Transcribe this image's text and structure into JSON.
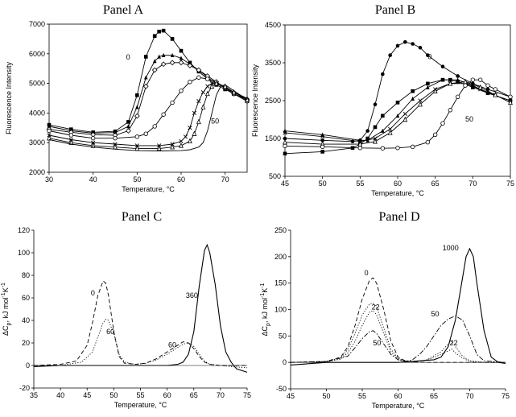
{
  "chart_data": [
    {
      "panel": "A",
      "type": "scatter",
      "title": "Panel A",
      "xlabel": "Temperature, °C",
      "ylabel": "Fluorescence Intensity",
      "xlim": [
        30,
        75
      ],
      "ylim": [
        2000,
        7000
      ],
      "xticks": [
        30,
        40,
        50,
        60,
        70
      ],
      "yticks": [
        2000,
        3000,
        4000,
        5000,
        6000,
        7000
      ],
      "frame": "box",
      "grid": false,
      "series": [
        {
          "marker": "filled-square",
          "line": "solid",
          "x": [
            30,
            35,
            40,
            45,
            48,
            50,
            52,
            54,
            55,
            56,
            58,
            60,
            62,
            64,
            66,
            68,
            70,
            72,
            75
          ],
          "y": [
            3600,
            3450,
            3350,
            3380,
            3700,
            4600,
            5900,
            6600,
            6750,
            6780,
            6500,
            6100,
            5700,
            5400,
            5150,
            4950,
            4800,
            4650,
            4450
          ]
        },
        {
          "marker": "filled-triangle",
          "line": "solid",
          "x": [
            30,
            35,
            40,
            45,
            48,
            50,
            52,
            54,
            55,
            56,
            58,
            60,
            62,
            64,
            66,
            68,
            70,
            72,
            75
          ],
          "y": [
            3550,
            3400,
            3320,
            3340,
            3550,
            4200,
            5200,
            5750,
            5900,
            5950,
            5950,
            5850,
            5650,
            5450,
            5200,
            5000,
            4850,
            4700,
            4500
          ]
        },
        {
          "marker": "open-diamond",
          "line": "solid",
          "x": [
            30,
            35,
            40,
            45,
            48,
            50,
            52,
            54,
            56,
            58,
            60,
            62,
            64,
            66,
            68,
            70,
            72,
            75
          ],
          "y": [
            3450,
            3350,
            3270,
            3250,
            3400,
            3900,
            4900,
            5450,
            5650,
            5700,
            5700,
            5600,
            5450,
            5250,
            5050,
            4850,
            4650,
            4450
          ]
        },
        {
          "marker": "open-circle",
          "line": "solid",
          "x": [
            30,
            35,
            40,
            45,
            50,
            52,
            54,
            56,
            58,
            60,
            62,
            64,
            66,
            68,
            70,
            72,
            75
          ],
          "y": [
            3400,
            3250,
            3150,
            3150,
            3200,
            3300,
            3550,
            3950,
            4350,
            4750,
            5050,
            5200,
            5150,
            5050,
            4850,
            4650,
            4400
          ]
        },
        {
          "marker": "cross",
          "line": "solid",
          "x": [
            30,
            35,
            40,
            45,
            50,
            55,
            58,
            60,
            61,
            62,
            63,
            64,
            65,
            66,
            67,
            68,
            70,
            72,
            75
          ],
          "y": [
            3250,
            3100,
            3000,
            2950,
            2900,
            2900,
            2950,
            3050,
            3200,
            3500,
            4000,
            4400,
            4700,
            4900,
            5000,
            5000,
            4850,
            4650,
            4400
          ]
        },
        {
          "marker": "open-triangle",
          "line": "solid",
          "x": [
            30,
            35,
            40,
            45,
            50,
            55,
            58,
            60,
            62,
            63,
            64,
            65,
            66,
            67,
            68,
            70,
            72,
            75
          ],
          "y": [
            3150,
            3000,
            2900,
            2850,
            2800,
            2800,
            2850,
            2900,
            3050,
            3300,
            3700,
            4200,
            4650,
            4900,
            5000,
            4900,
            4700,
            4450
          ]
        },
        {
          "marker": "none",
          "line": "solid",
          "x": [
            30,
            35,
            40,
            45,
            50,
            55,
            60,
            62,
            64,
            65,
            66,
            67,
            68,
            69,
            70,
            72,
            75
          ],
          "y": [
            3100,
            2950,
            2850,
            2780,
            2730,
            2720,
            2730,
            2760,
            2850,
            3000,
            3400,
            4000,
            4600,
            4900,
            4950,
            4750,
            4450
          ]
        }
      ],
      "annotations": [
        {
          "text": "0",
          "x": 47.5,
          "y": 5800
        },
        {
          "text": "50",
          "x": 66.8,
          "y": 3650
        }
      ]
    },
    {
      "panel": "B",
      "type": "scatter",
      "title": "Panel B",
      "xlabel": "Temperature, °C",
      "ylabel": "Fluorescence Intensity",
      "xlim": [
        45,
        75
      ],
      "ylim": [
        500,
        4500
      ],
      "xticks": [
        45,
        50,
        55,
        60,
        65,
        70,
        75
      ],
      "yticks": [
        500,
        1500,
        2500,
        3500,
        4500
      ],
      "frame": "box",
      "grid": false,
      "series": [
        {
          "marker": "filled-circle",
          "line": "solid",
          "x": [
            45,
            50,
            54,
            55,
            56,
            57,
            58,
            59,
            60,
            61,
            62,
            63,
            64,
            66,
            68,
            70,
            72,
            75
          ],
          "y": [
            1500,
            1450,
            1420,
            1450,
            1700,
            2400,
            3200,
            3700,
            3950,
            4050,
            4000,
            3900,
            3700,
            3400,
            3150,
            2950,
            2800,
            2600
          ]
        },
        {
          "marker": "filled-square",
          "line": "solid",
          "x": [
            45,
            50,
            54,
            55,
            56,
            57,
            58,
            60,
            62,
            64,
            66,
            67,
            68,
            70,
            72,
            75
          ],
          "y": [
            1100,
            1150,
            1250,
            1350,
            1500,
            1800,
            2100,
            2450,
            2750,
            2950,
            3050,
            3050,
            3000,
            2850,
            2700,
            2500
          ]
        },
        {
          "marker": "filled-triangle",
          "line": "solid",
          "x": [
            45,
            50,
            55,
            56,
            58,
            60,
            62,
            64,
            66,
            68,
            70,
            72,
            75
          ],
          "y": [
            1700,
            1600,
            1450,
            1450,
            1700,
            2100,
            2550,
            2850,
            3050,
            3050,
            2900,
            2700,
            2500
          ]
        },
        {
          "marker": "cross",
          "line": "solid",
          "x": [
            45,
            50,
            55,
            57,
            59,
            61,
            63,
            65,
            67,
            69,
            71,
            73,
            75
          ],
          "y": [
            1650,
            1550,
            1420,
            1500,
            1750,
            2150,
            2500,
            2800,
            2950,
            2950,
            2800,
            2650,
            2450
          ]
        },
        {
          "marker": "open-triangle",
          "line": "solid",
          "x": [
            45,
            50,
            55,
            57,
            59,
            61,
            63,
            65,
            67,
            69,
            71,
            73,
            75
          ],
          "y": [
            1400,
            1350,
            1350,
            1420,
            1650,
            2000,
            2400,
            2750,
            2950,
            3000,
            2850,
            2650,
            2450
          ]
        },
        {
          "marker": "open-circle",
          "line": "solid",
          "x": [
            45,
            50,
            55,
            58,
            60,
            62,
            64,
            65,
            66,
            67,
            68,
            69,
            70,
            71,
            72,
            73,
            75
          ],
          "y": [
            1300,
            1280,
            1250,
            1240,
            1250,
            1280,
            1400,
            1600,
            1900,
            2250,
            2600,
            2900,
            3050,
            3050,
            2900,
            2800,
            2600
          ]
        }
      ],
      "annotations": [
        {
          "text": "0",
          "x": 64,
          "y": 3600
        },
        {
          "text": "50",
          "x": 69,
          "y": 1950
        }
      ]
    },
    {
      "panel": "C",
      "type": "line",
      "title": "Panel C",
      "xlabel": "Temperature, °C",
      "ylabel": "ΔCp, kJ mol-1K-1",
      "xlim": [
        35,
        75
      ],
      "ylim": [
        -20,
        120
      ],
      "xticks": [
        35,
        40,
        45,
        50,
        55,
        60,
        65,
        70,
        75
      ],
      "yticks": [
        -20,
        0,
        20,
        40,
        60,
        80,
        100,
        120
      ],
      "frame": "left-bottom",
      "grid": false,
      "series": [
        {
          "style": "dashed",
          "x": [
            35,
            40,
            43,
            45,
            46,
            47,
            48,
            48.5,
            49,
            50,
            51,
            52,
            54,
            56,
            58,
            60,
            62,
            63,
            64,
            65,
            66,
            67,
            68,
            70,
            72,
            75
          ],
          "y": [
            0,
            1,
            4,
            18,
            38,
            62,
            75,
            73,
            62,
            30,
            8,
            2,
            1,
            2,
            6,
            12,
            18,
            21,
            20,
            15,
            8,
            3,
            1,
            0,
            0,
            0
          ]
        },
        {
          "style": "dotted",
          "x": [
            35,
            40,
            44,
            46,
            47,
            48,
            48.5,
            49,
            50,
            51,
            52,
            54,
            56,
            58,
            60,
            62,
            63,
            64,
            65,
            66,
            67,
            68,
            70,
            72,
            75
          ],
          "y": [
            0,
            0,
            3,
            12,
            25,
            38,
            41,
            40,
            28,
            10,
            3,
            1,
            2,
            5,
            10,
            16,
            19,
            20,
            17,
            10,
            4,
            1,
            0,
            -1,
            -2
          ]
        },
        {
          "style": "solid",
          "x": [
            35,
            40,
            45,
            50,
            55,
            60,
            62,
            63,
            64,
            65,
            66,
            67,
            67.5,
            68,
            69,
            70,
            71,
            72,
            73,
            75
          ],
          "y": [
            -1,
            0,
            0,
            0,
            0,
            0,
            1,
            3,
            10,
            30,
            70,
            102,
            107,
            100,
            72,
            35,
            12,
            3,
            -3,
            -6
          ]
        }
      ],
      "annotations": [
        {
          "text": "0",
          "x": 45.7,
          "y": 62
        },
        {
          "text": "60",
          "x": 48.6,
          "y": 28
        },
        {
          "text": "60",
          "x": 60.2,
          "y": 16
        },
        {
          "text": "360",
          "x": 63.5,
          "y": 60
        }
      ]
    },
    {
      "panel": "D",
      "type": "line",
      "title": "Panel D",
      "xlabel": "Temperature, °C",
      "ylabel": "ΔCp, kJ mol-1K-1",
      "xlim": [
        45,
        75
      ],
      "ylim": [
        -50,
        250
      ],
      "xticks": [
        45,
        50,
        55,
        60,
        65,
        70,
        75
      ],
      "yticks": [
        -50,
        0,
        50,
        100,
        150,
        200,
        250
      ],
      "frame": "left-bottom",
      "grid": false,
      "series": [
        {
          "style": "dashed",
          "x": [
            45,
            50,
            52,
            53,
            54,
            55,
            56,
            56.5,
            57,
            58,
            59,
            60,
            61,
            62,
            64,
            66,
            68,
            70,
            72,
            75
          ],
          "y": [
            0,
            2,
            10,
            30,
            70,
            120,
            155,
            160,
            150,
            100,
            40,
            10,
            3,
            1,
            0,
            0,
            0,
            0,
            0,
            0
          ]
        },
        {
          "style": "dotted",
          "x": [
            45,
            50,
            52,
            53,
            54,
            55,
            56,
            56.5,
            57,
            58,
            59,
            60,
            61,
            62,
            64,
            66,
            67,
            67.5,
            68,
            69,
            70,
            72,
            75
          ],
          "y": [
            0,
            2,
            8,
            25,
            55,
            90,
            110,
            112,
            105,
            65,
            25,
            8,
            2,
            1,
            5,
            20,
            35,
            40,
            30,
            12,
            3,
            0,
            0
          ]
        },
        {
          "style": "dotted",
          "x": [
            45,
            50,
            52,
            53,
            54,
            55,
            56,
            56.5,
            57,
            58,
            59,
            60,
            61,
            62,
            64,
            66,
            67,
            67.5,
            68,
            69,
            70,
            72,
            75
          ],
          "y": [
            0,
            1,
            6,
            18,
            40,
            70,
            95,
            98,
            90,
            55,
            20,
            6,
            2,
            1,
            4,
            15,
            22,
            25,
            18,
            8,
            2,
            0,
            0
          ]
        },
        {
          "style": "dash-dot",
          "x": [
            45,
            50,
            53,
            54,
            55,
            56,
            56.5,
            57,
            58,
            59,
            60,
            61,
            62,
            63,
            64,
            65,
            66,
            67,
            68,
            69,
            70,
            71,
            72,
            75
          ],
          "y": [
            0,
            1,
            12,
            28,
            45,
            58,
            60,
            55,
            35,
            15,
            5,
            2,
            5,
            15,
            30,
            50,
            70,
            82,
            88,
            80,
            50,
            15,
            3,
            0
          ]
        },
        {
          "style": "solid",
          "x": [
            45,
            50,
            55,
            60,
            65,
            66,
            67,
            68,
            69,
            69.5,
            70,
            70.5,
            71,
            72,
            73,
            74,
            75
          ],
          "y": [
            -5,
            0,
            0,
            0,
            5,
            10,
            30,
            80,
            160,
            200,
            215,
            200,
            150,
            60,
            10,
            0,
            -2
          ]
        }
      ],
      "annotations": [
        {
          "text": "0",
          "x": 55.3,
          "y": 165
        },
        {
          "text": "22",
          "x": 56.3,
          "y": 100
        },
        {
          "text": "22",
          "x": 67.2,
          "y": 32
        },
        {
          "text": "50",
          "x": 56.5,
          "y": 32
        },
        {
          "text": "50",
          "x": 64.6,
          "y": 87
        },
        {
          "text": "1000",
          "x": 66.2,
          "y": 212
        }
      ]
    }
  ]
}
